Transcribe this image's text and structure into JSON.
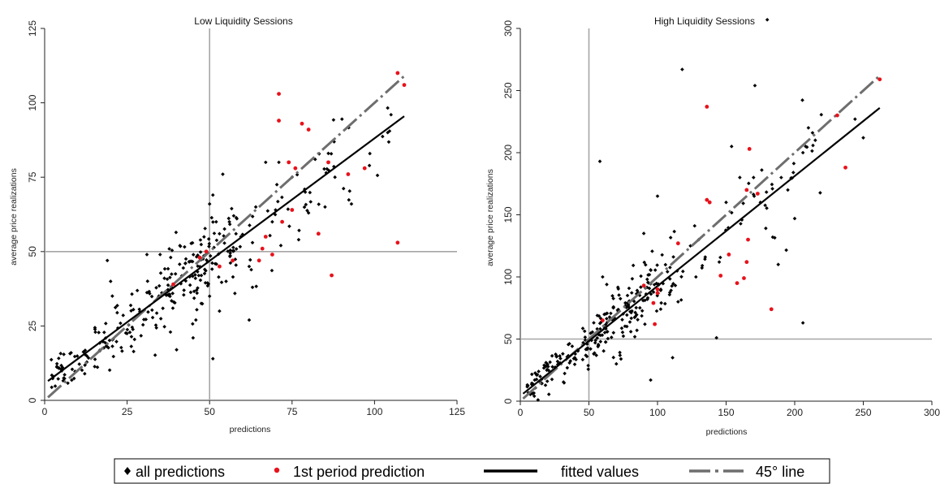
{
  "colors": {
    "all_predictions": "#000000",
    "first_period": "#e8121b",
    "fitted": "#000000",
    "line45": "#6e6e6e",
    "refline": "#a6a6a6",
    "axis": "#222222"
  },
  "legend": {
    "items": [
      {
        "label": "all predictions",
        "marker": "diamond",
        "color": "#000000"
      },
      {
        "label": "1st period prediction",
        "marker": "dot",
        "color": "#e8121b"
      },
      {
        "label": "fitted values",
        "marker": "solid-line",
        "color": "#000000"
      },
      {
        "label": "45° line",
        "marker": "dash-dot-line",
        "color": "#6e6e6e"
      }
    ]
  },
  "chart_data": [
    {
      "type": "scatter",
      "title": "Low Liquidity Sessions",
      "xlabel": "predictions",
      "ylabel": "average price realizations",
      "xlim": [
        0,
        125
      ],
      "ylim": [
        0,
        125
      ],
      "xticks": [
        0,
        25,
        50,
        75,
        100,
        125
      ],
      "yticks": [
        0,
        25,
        50,
        75,
        100,
        125
      ],
      "reference_lines": {
        "x": 50,
        "y": 50
      },
      "fitted_line": {
        "x": [
          1,
          109
        ],
        "y": [
          6.5,
          95.5
        ]
      },
      "line_45": {
        "x": [
          1,
          109
        ],
        "y": [
          1,
          109
        ]
      },
      "red_points": [
        [
          71,
          103
        ],
        [
          71,
          94
        ],
        [
          78,
          93
        ],
        [
          80,
          91
        ],
        [
          74,
          80
        ],
        [
          76,
          78
        ],
        [
          75,
          64
        ],
        [
          86,
          80
        ],
        [
          92,
          76
        ],
        [
          97,
          78
        ],
        [
          107,
          110
        ],
        [
          109,
          106
        ],
        [
          107,
          53
        ],
        [
          87,
          42
        ],
        [
          83,
          56
        ],
        [
          72,
          60
        ],
        [
          67,
          55
        ],
        [
          66,
          51
        ],
        [
          69,
          49
        ],
        [
          65,
          47
        ],
        [
          53,
          45
        ],
        [
          57,
          47
        ],
        [
          47,
          48
        ],
        [
          49,
          50
        ],
        [
          39,
          39
        ]
      ],
      "black_seed": 11,
      "black_points_extra": [
        [
          54,
          76
        ],
        [
          67,
          80
        ],
        [
          71,
          80
        ],
        [
          75,
          75
        ],
        [
          82,
          81
        ],
        [
          86,
          83
        ],
        [
          88,
          75
        ],
        [
          93,
          66
        ],
        [
          104,
          90
        ],
        [
          105,
          96
        ],
        [
          50,
          66
        ],
        [
          51,
          69
        ],
        [
          52,
          60
        ],
        [
          53,
          56
        ],
        [
          56,
          60
        ],
        [
          58,
          56
        ],
        [
          63,
          53
        ],
        [
          64,
          65
        ],
        [
          69,
          60
        ],
        [
          70,
          64
        ],
        [
          77,
          54
        ],
        [
          79,
          70
        ],
        [
          80,
          63
        ],
        [
          85,
          65
        ],
        [
          63,
          38
        ],
        [
          62,
          27
        ],
        [
          51,
          14
        ],
        [
          45,
          21
        ],
        [
          40,
          17
        ],
        [
          50,
          35
        ],
        [
          53,
          30
        ],
        [
          55,
          40
        ],
        [
          62,
          45
        ],
        [
          35,
          49
        ],
        [
          31,
          49
        ],
        [
          20,
          40
        ],
        [
          19,
          47
        ]
      ]
    },
    {
      "type": "scatter",
      "title": "High Liquidity Sessions",
      "xlabel": "predictions",
      "ylabel": "average price realizations",
      "xlim": [
        0,
        300
      ],
      "ylim": [
        0,
        300
      ],
      "xticks": [
        0,
        50,
        100,
        150,
        200,
        250,
        300
      ],
      "yticks": [
        0,
        50,
        100,
        150,
        200,
        250,
        300
      ],
      "reference_lines": {
        "x": 50,
        "y": 50
      },
      "fitted_line": {
        "x": [
          2,
          262
        ],
        "y": [
          6,
          236
        ]
      },
      "line_45": {
        "x": [
          2,
          262
        ],
        "y": [
          2,
          262
        ]
      },
      "red_points": [
        [
          262,
          259
        ],
        [
          231,
          230
        ],
        [
          237,
          188
        ],
        [
          136,
          237
        ],
        [
          136,
          162
        ],
        [
          146,
          101
        ],
        [
          158,
          95
        ],
        [
          163,
          99
        ],
        [
          166,
          130
        ],
        [
          165,
          112
        ],
        [
          173,
          167
        ],
        [
          183,
          74
        ],
        [
          138,
          160
        ],
        [
          165,
          170
        ],
        [
          167,
          203
        ],
        [
          152,
          118
        ],
        [
          115,
          127
        ],
        [
          100,
          90
        ],
        [
          97,
          79
        ],
        [
          98,
          62
        ],
        [
          100,
          87
        ],
        [
          90,
          93
        ],
        [
          60,
          65
        ]
      ],
      "black_seed": 23,
      "black_points_extra": [
        [
          180,
          307
        ],
        [
          118,
          267
        ],
        [
          171,
          254
        ],
        [
          154,
          205
        ],
        [
          176,
          186
        ],
        [
          210,
          220
        ],
        [
          213,
          216
        ],
        [
          215,
          210
        ],
        [
          206,
          200
        ],
        [
          208,
          205
        ],
        [
          199,
          184
        ],
        [
          195,
          170
        ],
        [
          200,
          147
        ],
        [
          206,
          63
        ],
        [
          184,
          132
        ],
        [
          188,
          110
        ],
        [
          175,
          160
        ],
        [
          170,
          180
        ],
        [
          160,
          180
        ],
        [
          150,
          160
        ],
        [
          145,
          112
        ],
        [
          143,
          51
        ],
        [
          130,
          130
        ],
        [
          128,
          100
        ],
        [
          124,
          125
        ],
        [
          111,
          35
        ],
        [
          115,
          80
        ],
        [
          90,
          135
        ],
        [
          100,
          165
        ],
        [
          58,
          193
        ],
        [
          95,
          17
        ],
        [
          85,
          57
        ],
        [
          70,
          30
        ],
        [
          60,
          100
        ],
        [
          250,
          212
        ],
        [
          244,
          227
        ]
      ]
    }
  ]
}
